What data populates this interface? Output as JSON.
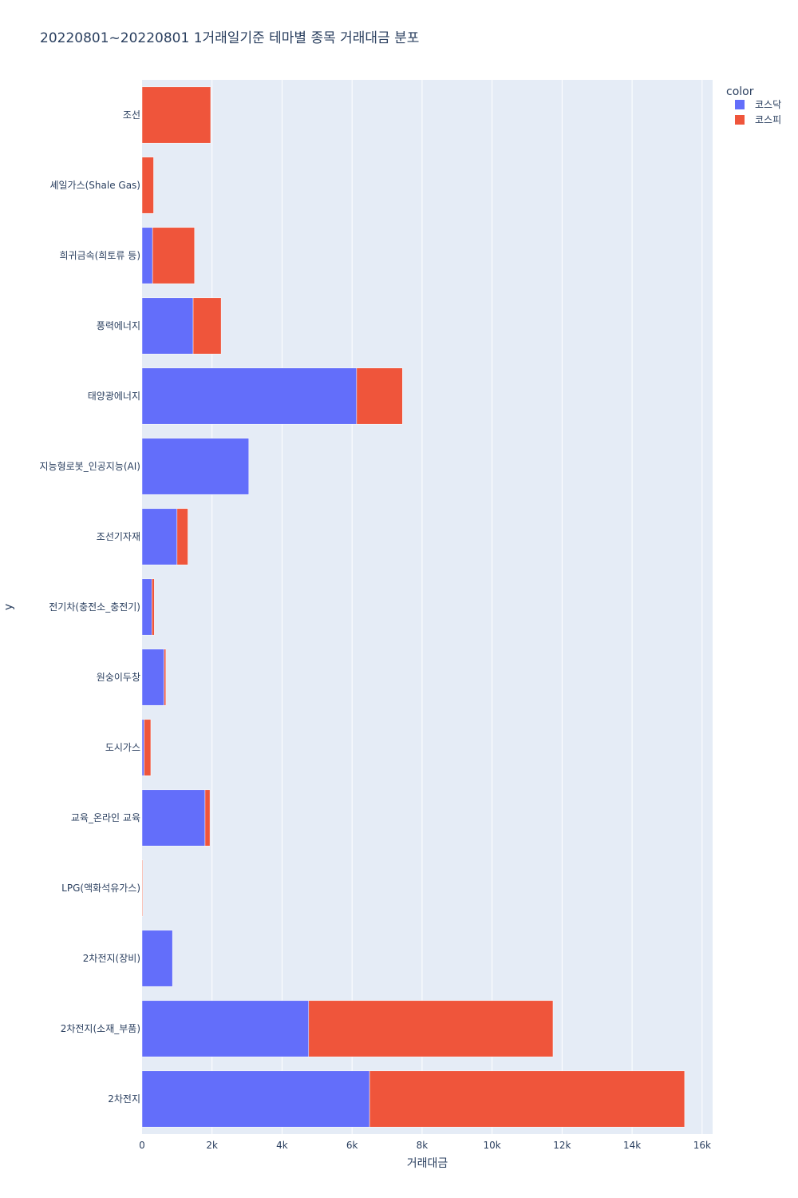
{
  "chart_data": {
    "type": "bar",
    "orientation": "horizontal",
    "barmode": "stack",
    "title": "20220801~20220801 1거래일기준 테마별 종목 거래대금 분포",
    "xlabel": "거래대금",
    "ylabel": "y",
    "xlim": [
      0,
      16300
    ],
    "xticks": [
      0,
      2000,
      4000,
      6000,
      8000,
      10000,
      12000,
      14000,
      16000
    ],
    "xtick_labels": [
      "0",
      "2k",
      "4k",
      "6k",
      "8k",
      "10k",
      "12k",
      "14k",
      "16k"
    ],
    "grid": true,
    "legend": {
      "title": "color",
      "placement": "top-right"
    },
    "categories": [
      "2차전지",
      "2차전지(소재_부품)",
      "2차전지(장비)",
      "LPG(액화석유가스)",
      "교육_온라인 교육",
      "도시가스",
      "원숭이두창",
      "전기차(충전소_충전기)",
      "조선기자재",
      "지능형로봇_인공지능(AI)",
      "태양광에너지",
      "풍력에너지",
      "희귀금속(희토류 등)",
      "셰일가스(Shale Gas)",
      "조선"
    ],
    "series": [
      {
        "name": "코스닥",
        "color": "#636efa",
        "values": [
          6500,
          4760,
          870,
          0,
          1800,
          60,
          630,
          280,
          1000,
          3050,
          6130,
          1460,
          300,
          0,
          0
        ]
      },
      {
        "name": "코스피",
        "color": "#ef553b",
        "values": [
          9000,
          6980,
          0,
          20,
          140,
          190,
          50,
          70,
          310,
          0,
          1310,
          800,
          1200,
          330,
          1960
        ]
      }
    ]
  }
}
